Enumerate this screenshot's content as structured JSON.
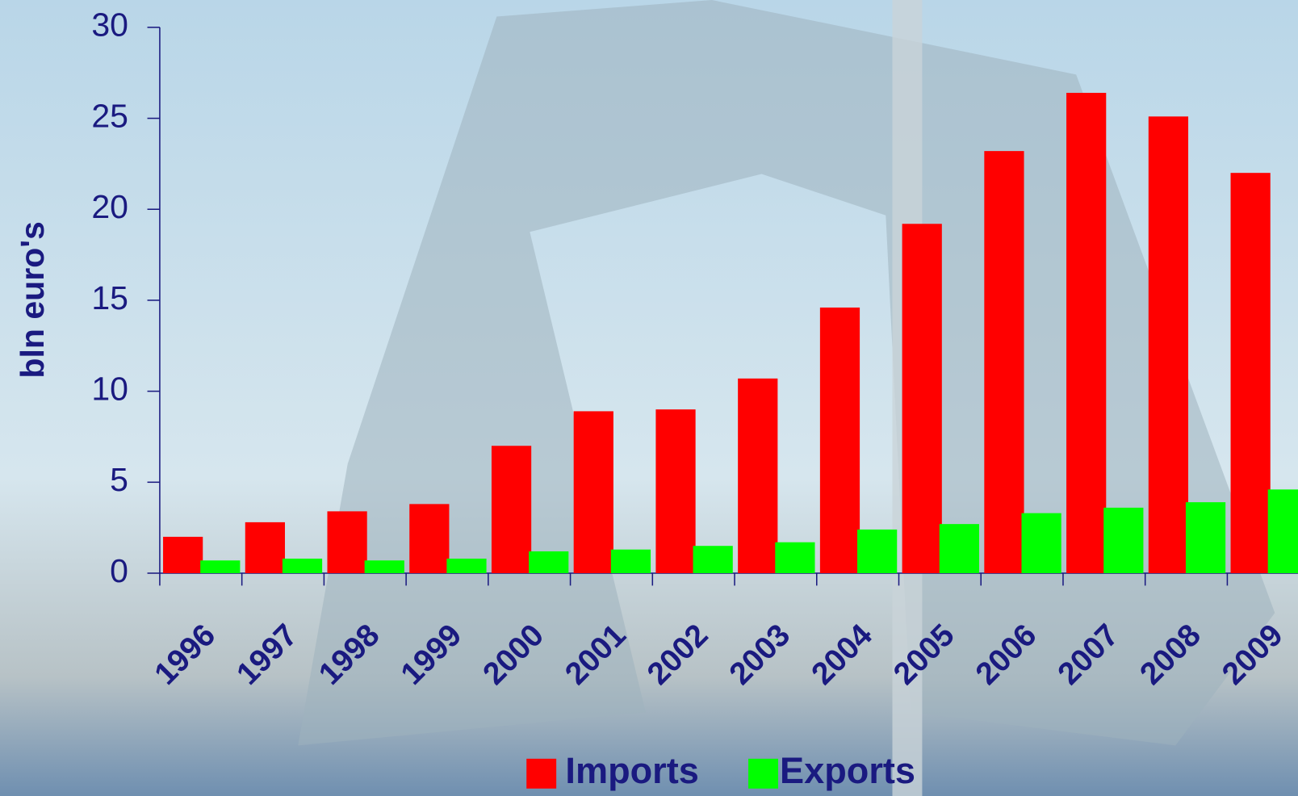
{
  "chart_data": {
    "type": "bar",
    "y_label": "bln euro's",
    "categories": [
      "1996",
      "1997",
      "1998",
      "1999",
      "2000",
      "2001",
      "2002",
      "2003",
      "2004",
      "2005",
      "2006",
      "2007",
      "2008",
      "2009"
    ],
    "series": [
      {
        "name": "Imports",
        "color": "#ff0000",
        "values": [
          2.0,
          2.8,
          3.4,
          3.8,
          7.0,
          8.9,
          9.0,
          10.7,
          14.6,
          19.2,
          23.2,
          26.4,
          25.1,
          22.0
        ]
      },
      {
        "name": "Exports",
        "color": "#00ff00",
        "values": [
          0.7,
          0.8,
          0.7,
          0.8,
          1.2,
          1.3,
          1.5,
          1.7,
          2.4,
          2.7,
          3.3,
          3.6,
          3.9,
          4.6
        ]
      }
    ],
    "ylim": [
      0,
      30
    ],
    "yticks": [
      0,
      5,
      10,
      15,
      20,
      25,
      30
    ]
  }
}
